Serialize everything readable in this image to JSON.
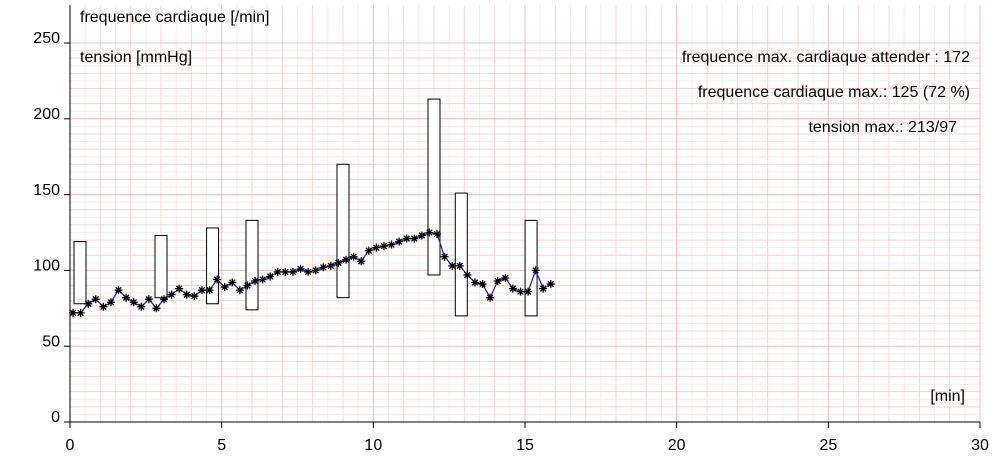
{
  "chart_data": {
    "type": "line",
    "ylabel": "frequence cardiaque [/min]",
    "y2label": "tension [mmHg]",
    "xlabel": "[min]",
    "annotations": [
      "frequence max. cardiaque attender : 172",
      "frequence cardiaque max.: 125 (72 %)",
      "tension max.: 213/97"
    ],
    "xlim": [
      0,
      30
    ],
    "xticks": [
      0,
      5,
      10,
      15,
      20,
      25,
      30
    ],
    "ylim": [
      0,
      250
    ],
    "yticks": [
      0,
      50,
      100,
      150,
      200,
      250
    ],
    "grid": true,
    "series": [
      {
        "color": "#1a1acc",
        "marker_color": "#000000",
        "x": [
          0.1,
          0.35,
          0.6,
          0.85,
          1.1,
          1.35,
          1.6,
          1.85,
          2.1,
          2.35,
          2.6,
          2.85,
          3.1,
          3.35,
          3.6,
          3.85,
          4.1,
          4.35,
          4.6,
          4.85,
          5.1,
          5.35,
          5.6,
          5.85,
          6.1,
          6.35,
          6.6,
          6.85,
          7.1,
          7.35,
          7.6,
          7.85,
          8.1,
          8.35,
          8.6,
          8.85,
          9.1,
          9.35,
          9.6,
          9.85,
          10.1,
          10.35,
          10.6,
          10.85,
          11.1,
          11.35,
          11.6,
          11.85,
          12.1,
          12.35,
          12.6,
          12.85,
          13.1,
          13.35,
          13.6,
          13.85,
          14.1,
          14.35,
          14.6,
          14.85,
          15.1,
          15.35,
          15.6,
          15.85
        ],
        "values": [
          72,
          72,
          78,
          81,
          76,
          79,
          87,
          82,
          79,
          76,
          81,
          75,
          81,
          84,
          88,
          84,
          83,
          87,
          87,
          94,
          89,
          92,
          87,
          90,
          93,
          94,
          96,
          99,
          99,
          99,
          101,
          99,
          100,
          102,
          103,
          105,
          107,
          109,
          106,
          113,
          115,
          116,
          117,
          119,
          121,
          121,
          123,
          125,
          124,
          109,
          103,
          103,
          97,
          92,
          91,
          82,
          93,
          95,
          88,
          86,
          86,
          100,
          88,
          91
        ]
      }
    ],
    "boxes": {
      "color": "#000000",
      "x": [
        0.33,
        3.0,
        4.7,
        6.0,
        9.0,
        12.0,
        12.9,
        15.2
      ],
      "high": [
        119,
        123,
        128,
        133,
        170,
        213,
        151,
        133
      ],
      "low": [
        78,
        82,
        78,
        74,
        82,
        97,
        70,
        70
      ]
    }
  }
}
